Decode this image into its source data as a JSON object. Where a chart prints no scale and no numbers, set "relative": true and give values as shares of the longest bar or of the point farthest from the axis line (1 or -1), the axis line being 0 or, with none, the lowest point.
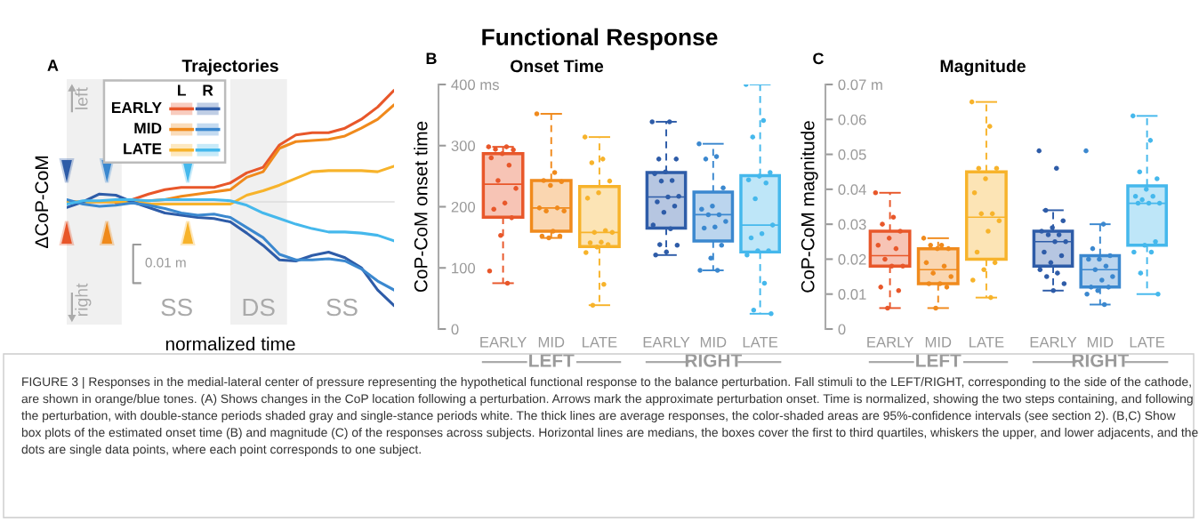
{
  "chart_data": [
    {
      "type": "line",
      "title": "Trajectories",
      "xlabel": "normalized time",
      "ylabel": "ΔCoP-CoM",
      "relative": true,
      "annotations": [
        "A",
        "L",
        "R",
        "left",
        "right",
        "0.01 m",
        "SS",
        "DS",
        "SS"
      ],
      "categories": [
        null,
        null,
        null,
        null,
        null,
        null,
        null,
        null,
        null,
        null,
        null,
        null,
        null,
        null,
        null,
        null,
        null,
        null,
        null,
        null,
        null
      ],
      "tick_labels": false,
      "legend": "top left",
      "series": [
        {
          "name": "EARLY",
          "color": "#e8572a",
          "values": [
            null,
            null,
            null,
            -0.01,
            0.02,
            0.07,
            0.11,
            0.13,
            0.13,
            0.13,
            0.17,
            0.26,
            0.31,
            0.51,
            0.6,
            0.62,
            0.62,
            0.66,
            0.74,
            0.85,
            1.0
          ]
        },
        {
          "name": "MID",
          "color": "#f08a1c",
          "values": [
            0.0,
            0.0,
            0.0,
            0.0,
            0.0,
            0.01,
            0.02,
            0.05,
            0.07,
            0.09,
            0.11,
            0.22,
            0.27,
            0.48,
            0.54,
            0.55,
            0.56,
            0.59,
            0.66,
            0.74,
            0.87
          ]
        },
        {
          "name": "LATE",
          "color": "#f7b32b",
          "values": [
            0.0,
            0.0,
            0.0,
            0.0,
            0.0,
            -0.02,
            -0.02,
            -0.02,
            -0.02,
            -0.02,
            -0.02,
            0.06,
            0.1,
            0.15,
            0.21,
            0.27,
            0.28,
            0.28,
            0.28,
            0.27,
            0.32
          ]
        },
        {
          "color": "#2e5ca8",
          "values": [
            -0.05,
            0.0,
            0.07,
            0.06,
            0.0,
            -0.05,
            -0.1,
            -0.12,
            -0.14,
            -0.15,
            -0.18,
            -0.28,
            -0.39,
            -0.52,
            -0.53,
            -0.48,
            -0.45,
            -0.5,
            -0.59,
            -0.79,
            -0.93
          ]
        },
        {
          "color": "#3b88cf",
          "values": [
            0.02,
            -0.02,
            -0.04,
            -0.03,
            -0.01,
            -0.03,
            -0.06,
            -0.1,
            -0.12,
            -0.11,
            -0.14,
            -0.23,
            -0.32,
            -0.47,
            -0.52,
            -0.52,
            -0.51,
            -0.53,
            -0.6,
            -0.71,
            -0.79
          ]
        },
        {
          "color": "#45b8ec",
          "values": [
            -0.02,
            0.01,
            0.01,
            0.02,
            0.02,
            0.01,
            0.02,
            0.02,
            0.02,
            0.02,
            0.01,
            -0.03,
            -0.1,
            -0.15,
            -0.2,
            -0.24,
            -0.27,
            -0.27,
            -0.28,
            -0.3,
            -0.35
          ]
        }
      ]
    },
    {
      "type": "box",
      "title": "Onset Time",
      "ylabel": "CoP-CoM onset time",
      "xlabel": "LEFT",
      "annotations": [
        "B"
      ],
      "categories": [
        "EARLY",
        "MID",
        "LATE"
      ],
      "colors": [
        "#e8572a",
        "#f08a1c",
        "#f7b32b"
      ],
      "ylim": [
        0,
        400
      ],
      "yticks": [
        0,
        100,
        200,
        300,
        {
          "value": 400,
          "label": "400 ms"
        }
      ],
      "line_style": "dashed",
      "marker": "circle",
      "boxes": [
        {
          "low": 75,
          "q1": 183,
          "median": 237,
          "q3": 287,
          "high": 298
        },
        {
          "low": 149,
          "q1": 160,
          "median": 198,
          "q3": 243,
          "high": 352
        },
        {
          "low": 39,
          "q1": 135,
          "median": 158,
          "q3": 233,
          "high": 314
        }
      ],
      "series": [
        {
          "type": "scatter",
          "color": "#e8572a",
          "x": [
            "EARLY",
            "EARLY",
            "EARLY",
            "EARLY",
            "EARLY",
            "EARLY",
            "EARLY",
            "EARLY",
            "EARLY",
            "EARLY",
            "EARLY",
            "EARLY",
            "EARLY",
            "EARLY",
            "EARLY"
          ],
          "values": [
            298,
            298,
            294,
            293,
            287,
            280,
            268,
            243,
            230,
            206,
            196,
            182,
            153,
            95,
            75
          ]
        },
        {
          "type": "scatter",
          "color": "#f08a1c",
          "x": [
            "MID",
            "MID",
            "MID",
            "MID",
            "MID",
            "MID",
            "MID",
            "MID",
            "MID",
            "MID",
            "MID",
            "MID",
            "MID"
          ],
          "values": [
            352,
            256,
            243,
            241,
            235,
            198,
            198,
            193,
            193,
            160,
            152,
            152,
            149
          ]
        },
        {
          "type": "scatter",
          "color": "#f7b32b",
          "x": [
            "LATE",
            "LATE",
            "LATE",
            "LATE",
            "LATE",
            "LATE",
            "LATE",
            "LATE",
            "LATE",
            "LATE",
            "LATE",
            "LATE",
            "LATE",
            "LATE",
            "LATE",
            "LATE"
          ],
          "values": [
            314,
            278,
            272,
            242,
            223,
            214,
            161,
            158,
            158,
            142,
            141,
            138,
            134,
            125,
            73,
            39
          ]
        }
      ]
    },
    {
      "type": "box",
      "xlabel": "RIGHT",
      "tick_labels": "x",
      "categories": [
        "EARLY",
        "MID",
        "LATE"
      ],
      "colors": [
        "#2e5ca8",
        "#3b88cf",
        "#45b8ec"
      ],
      "ylim": [
        0,
        400
      ],
      "line_style": "dashed",
      "marker": "circle",
      "boxes": [
        {
          "low": 121,
          "q1": 165,
          "median": 216,
          "q3": 256,
          "high": 339
        },
        {
          "low": 96,
          "q1": 144,
          "median": 187,
          "q3": 224,
          "high": 303
        },
        {
          "low": 25,
          "q1": 126,
          "median": 170,
          "q3": 251,
          "high": 400
        }
      ],
      "series": [
        {
          "type": "scatter",
          "color": "#2e5ca8",
          "x": [
            "EARLY",
            "EARLY",
            "EARLY",
            "EARLY",
            "EARLY",
            "EARLY",
            "EARLY",
            "EARLY",
            "EARLY",
            "EARLY",
            "EARLY",
            "EARLY",
            "EARLY",
            "EARLY",
            "EARLY",
            "EARLY",
            "EARLY",
            "EARLY",
            "EARLY"
          ],
          "values": [
            339,
            339,
            278,
            278,
            257,
            254,
            243,
            242,
            217,
            216,
            208,
            201,
            191,
            170,
            164,
            138,
            137,
            126,
            121
          ]
        },
        {
          "type": "scatter",
          "color": "#3b88cf",
          "x": [
            "MID",
            "MID",
            "MID",
            "MID",
            "MID",
            "MID",
            "MID",
            "MID",
            "MID",
            "MID",
            "MID",
            "MID",
            "MID",
            "MID",
            "MID"
          ],
          "values": [
            303,
            282,
            278,
            231,
            201,
            196,
            187,
            187,
            176,
            167,
            165,
            137,
            116,
            96,
            96
          ]
        },
        {
          "type": "scatter",
          "color": "#45b8ec",
          "x": [
            "LATE",
            "LATE",
            "LATE",
            "LATE",
            "LATE",
            "LATE",
            "LATE",
            "LATE",
            "LATE",
            "LATE",
            "LATE",
            "LATE",
            "LATE",
            "LATE",
            "LATE",
            "LATE",
            "LATE"
          ],
          "values": [
            400,
            341,
            314,
            256,
            250,
            244,
            239,
            213,
            170,
            156,
            149,
            128,
            128,
            121,
            75,
            31,
            25
          ]
        }
      ]
    },
    {
      "type": "box",
      "title": "Magnitude",
      "ylabel": "CoP-CoM magnitude",
      "xlabel": "LEFT",
      "annotations": [
        "C"
      ],
      "categories": [
        "EARLY",
        "MID",
        "LATE"
      ],
      "colors": [
        "#e8572a",
        "#f08a1c",
        "#f7b32b"
      ],
      "ylim": [
        0,
        0.07
      ],
      "yticks": [
        0,
        0.01,
        0.02,
        0.03,
        0.04,
        0.05,
        0.06,
        {
          "value": 0.07,
          "label": "0.07 m"
        }
      ],
      "line_style": "dashed",
      "marker": "circle",
      "boxes": [
        {
          "low": 0.006,
          "q1": 0.018,
          "median": 0.021,
          "q3": 0.028,
          "high": 0.039
        },
        {
          "low": 0.006,
          "q1": 0.013,
          "median": 0.017,
          "q3": 0.023,
          "high": 0.026
        },
        {
          "low": 0.009,
          "q1": 0.02,
          "median": 0.032,
          "q3": 0.045,
          "high": 0.065
        }
      ],
      "series": [
        {
          "type": "scatter",
          "color": "#e8572a",
          "x": [
            "EARLY",
            "EARLY",
            "EARLY",
            "EARLY",
            "EARLY",
            "EARLY",
            "EARLY",
            "EARLY",
            "EARLY",
            "EARLY",
            "EARLY",
            "EARLY",
            "EARLY"
          ],
          "values": [
            0.039,
            0.032,
            0.03,
            0.028,
            0.026,
            0.024,
            0.023,
            0.02,
            0.018,
            0.018,
            0.012,
            0.011,
            0.006
          ]
        },
        {
          "type": "scatter",
          "color": "#f08a1c",
          "x": [
            "MID",
            "MID",
            "MID",
            "MID",
            "MID",
            "MID",
            "MID",
            "MID",
            "MID",
            "MID",
            "MID",
            "MID",
            "MID"
          ],
          "values": [
            0.026,
            0.024,
            0.024,
            0.023,
            0.023,
            0.019,
            0.018,
            0.016,
            0.015,
            0.013,
            0.013,
            0.012,
            0.006
          ]
        },
        {
          "type": "scatter",
          "color": "#f7b32b",
          "x": [
            "LATE",
            "LATE",
            "LATE",
            "LATE",
            "LATE",
            "LATE",
            "LATE",
            "LATE",
            "LATE",
            "LATE",
            "LATE",
            "LATE",
            "LATE",
            "LATE",
            "LATE"
          ],
          "values": [
            0.065,
            0.058,
            0.046,
            0.046,
            0.043,
            0.039,
            0.033,
            0.033,
            0.031,
            0.028,
            0.022,
            0.019,
            0.017,
            0.014,
            0.009
          ]
        }
      ]
    },
    {
      "type": "box",
      "xlabel": "RIGHT",
      "tick_labels": "x",
      "categories": [
        "EARLY",
        "MID",
        "LATE"
      ],
      "colors": [
        "#2e5ca8",
        "#3b88cf",
        "#45b8ec"
      ],
      "ylim": [
        0,
        0.07
      ],
      "line_style": "dashed",
      "marker": "circle",
      "boxes": [
        {
          "low": 0.011,
          "q1": 0.018,
          "median": 0.025,
          "q3": 0.028,
          "high": 0.034
        },
        {
          "low": 0.007,
          "q1": 0.012,
          "median": 0.017,
          "q3": 0.021,
          "high": 0.03
        },
        {
          "low": 0.01,
          "q1": 0.024,
          "median": 0.036,
          "q3": 0.041,
          "high": 0.061
        }
      ],
      "series": [
        {
          "type": "scatter",
          "color": "#2e5ca8",
          "x": [
            "EARLY",
            "EARLY",
            "EARLY",
            "EARLY",
            "EARLY",
            "EARLY",
            "EARLY",
            "EARLY",
            "EARLY",
            "EARLY",
            "EARLY",
            "EARLY",
            "EARLY",
            "EARLY",
            "EARLY",
            "EARLY",
            "EARLY",
            "EARLY"
          ],
          "values": [
            0.051,
            0.046,
            0.034,
            0.031,
            0.029,
            0.028,
            0.027,
            0.027,
            0.025,
            0.025,
            0.022,
            0.021,
            0.019,
            0.017,
            0.016,
            0.015,
            0.013,
            0.011
          ]
        },
        {
          "type": "scatter",
          "color": "#3b88cf",
          "x": [
            "MID",
            "MID",
            "MID",
            "MID",
            "MID",
            "MID",
            "MID",
            "MID",
            "MID",
            "MID",
            "MID",
            "MID",
            "MID",
            "MID",
            "MID"
          ],
          "values": [
            0.051,
            0.03,
            0.023,
            0.021,
            0.02,
            0.02,
            0.018,
            0.017,
            0.015,
            0.014,
            0.012,
            0.012,
            0.011,
            0.01,
            0.007
          ]
        },
        {
          "type": "scatter",
          "color": "#45b8ec",
          "x": [
            "LATE",
            "LATE",
            "LATE",
            "LATE",
            "LATE",
            "LATE",
            "LATE",
            "LATE",
            "LATE",
            "LATE",
            "LATE",
            "LATE",
            "LATE",
            "LATE",
            "LATE",
            "LATE",
            "LATE"
          ],
          "values": [
            0.061,
            0.054,
            0.045,
            0.043,
            0.04,
            0.038,
            0.038,
            0.037,
            0.036,
            0.036,
            0.036,
            0.025,
            0.024,
            0.022,
            0.022,
            0.016,
            0.01
          ]
        }
      ]
    },
    {
      "type": "other",
      "title": "Functional Response",
      "annotations": [
        "FIGURE 3 | Responses in the medial-lateral center of pressure representing the hypothetical functional response to the balance perturbation. Fall stimuli to the LEFT/RIGHT, corresponding to the side of the cathode, are shown in orange/blue tones. (A) Shows changes in the CoP location following a perturbation. Arrows mark the approximate perturbation onset. Time is normalized, showing the two steps containing, and following the perturbation, with double-stance periods shaded gray and single-stance periods white. The thick lines are average responses, the color-shaded areas are 95%-confidence intervals (see section 2). (B,C) Show box plots of the estimated onset time (B) and magnitude (C) of the responses across subjects. Horizontal lines are medians, the boxes cover the first to third quartiles, whiskers the upper, and lower adjacents, and the dots are single data points, where each point corresponds to one subject."
      ]
    }
  ]
}
